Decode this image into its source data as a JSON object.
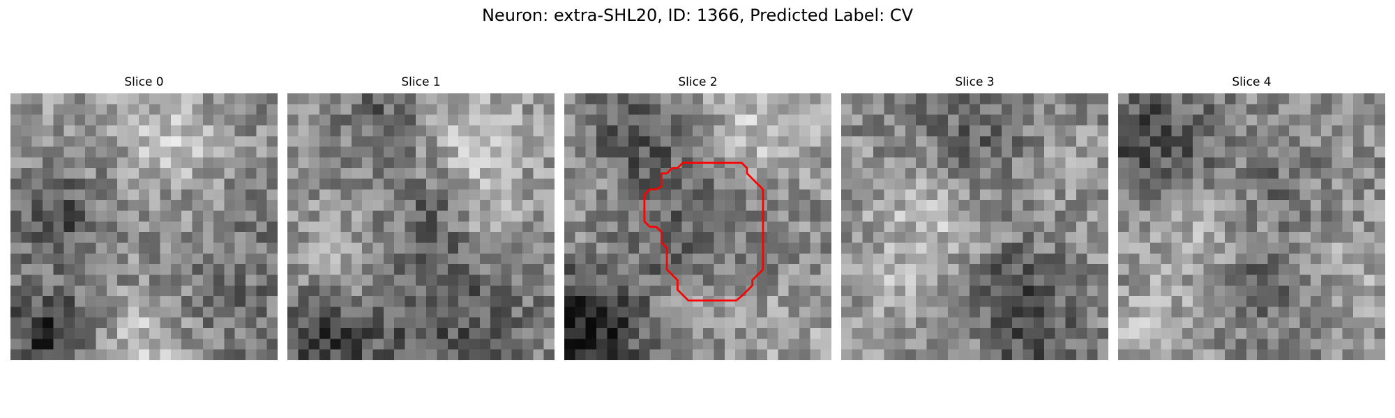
{
  "figure": {
    "title": "Neuron: extra-SHL20, ID: 1366, Predicted Label: CV"
  },
  "panels": [
    {
      "title": "Slice 0",
      "has_contour": false
    },
    {
      "title": "Slice 1",
      "has_contour": false
    },
    {
      "title": "Slice 2",
      "has_contour": true
    },
    {
      "title": "Slice 3",
      "has_contour": false
    },
    {
      "title": "Slice 4",
      "has_contour": false
    }
  ],
  "contour": {
    "color": "#ff0000"
  },
  "image": {
    "colormap": "gray",
    "grid_size": 25
  }
}
